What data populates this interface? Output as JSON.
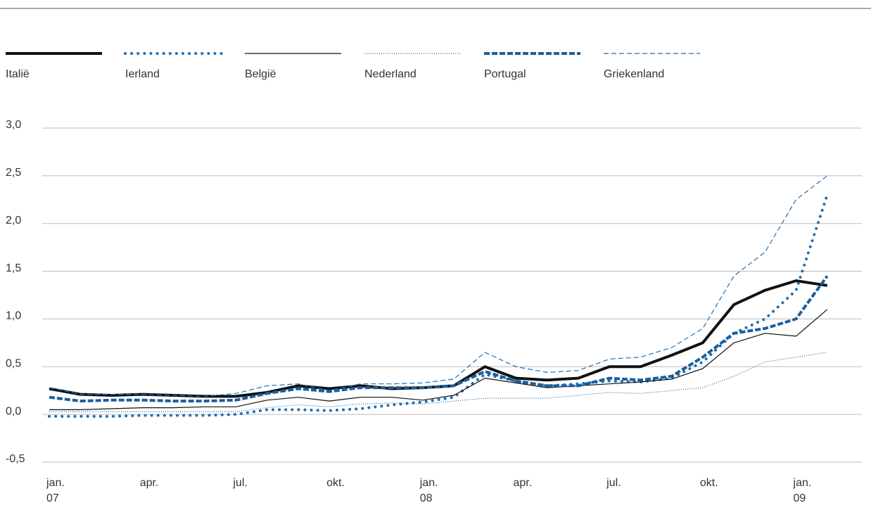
{
  "chart_data": {
    "type": "line",
    "x": [
      "2007-01",
      "2007-02",
      "2007-03",
      "2007-04",
      "2007-05",
      "2007-06",
      "2007-07",
      "2007-08",
      "2007-09",
      "2007-10",
      "2007-11",
      "2007-12",
      "2008-01",
      "2008-02",
      "2008-03",
      "2008-04",
      "2008-05",
      "2008-06",
      "2008-07",
      "2008-08",
      "2008-09",
      "2008-10",
      "2008-11",
      "2008-12",
      "2009-01",
      "2009-02"
    ],
    "xlim": [
      "2007-01",
      "2009-03"
    ],
    "xticks": [
      {
        "value": "2007-01",
        "label": "jan. 07"
      },
      {
        "value": "2007-04",
        "label": "apr."
      },
      {
        "value": "2007-07",
        "label": "jul."
      },
      {
        "value": "2007-10",
        "label": "okt."
      },
      {
        "value": "2008-01",
        "label": "jan. 08"
      },
      {
        "value": "2008-04",
        "label": "apr."
      },
      {
        "value": "2008-07",
        "label": "jul."
      },
      {
        "value": "2008-10",
        "label": "okt."
      },
      {
        "value": "2009-01",
        "label": "jan. 09"
      }
    ],
    "ylim": [
      -0.5,
      3.0
    ],
    "yticks": [
      {
        "value": -0.5,
        "label": "-0,5"
      },
      {
        "value": 0,
        "label": "0,0"
      },
      {
        "value": 0.5,
        "label": "0,5"
      },
      {
        "value": 1,
        "label": "1,0"
      },
      {
        "value": 1.5,
        "label": "1,5"
      },
      {
        "value": 2,
        "label": "2,0"
      },
      {
        "value": 2.5,
        "label": "2,5"
      },
      {
        "value": 3,
        "label": "3,0"
      }
    ],
    "grid": true,
    "legend": "top",
    "series": [
      {
        "name": "Italië",
        "color": "#111111",
        "line_style": "solid",
        "line_width": 4,
        "values": [
          0.27,
          0.21,
          0.2,
          0.21,
          0.2,
          0.19,
          0.19,
          0.23,
          0.3,
          0.27,
          0.3,
          0.27,
          0.28,
          0.3,
          0.5,
          0.38,
          0.36,
          0.38,
          0.5,
          0.5,
          0.62,
          0.75,
          1.15,
          1.3,
          1.4,
          1.35
        ]
      },
      {
        "name": "Ierland",
        "color": "#1f6fb0",
        "line_style": "dotted",
        "line_width": 4,
        "values": [
          -0.02,
          -0.02,
          -0.02,
          -0.01,
          -0.01,
          -0.01,
          0.0,
          0.05,
          0.05,
          0.04,
          0.06,
          0.1,
          0.13,
          0.18,
          0.42,
          0.35,
          0.3,
          0.32,
          0.35,
          0.34,
          0.38,
          0.55,
          0.85,
          1.0,
          1.3,
          2.3
        ]
      },
      {
        "name": "België",
        "color": "#111111",
        "line_style": "solid",
        "line_width": 1.2,
        "values": [
          0.05,
          0.05,
          0.06,
          0.07,
          0.07,
          0.08,
          0.08,
          0.15,
          0.18,
          0.14,
          0.18,
          0.18,
          0.15,
          0.2,
          0.38,
          0.33,
          0.28,
          0.3,
          0.32,
          0.34,
          0.37,
          0.48,
          0.75,
          0.85,
          0.82,
          1.1
        ]
      },
      {
        "name": "Nederland",
        "color": "#1f6fb0",
        "line_style": "dotted",
        "line_width": 1.2,
        "values": [
          0.03,
          0.03,
          0.03,
          0.03,
          0.03,
          0.03,
          0.03,
          0.07,
          0.1,
          0.08,
          0.11,
          0.12,
          0.11,
          0.14,
          0.17,
          0.17,
          0.17,
          0.2,
          0.23,
          0.22,
          0.25,
          0.28,
          0.4,
          0.55,
          0.6,
          0.65
        ]
      },
      {
        "name": "Portugal",
        "color": "#1a5f9e",
        "line_style": "dashed",
        "line_width": 4,
        "values": [
          0.18,
          0.14,
          0.15,
          0.15,
          0.14,
          0.14,
          0.15,
          0.22,
          0.27,
          0.24,
          0.28,
          0.28,
          0.28,
          0.3,
          0.45,
          0.35,
          0.3,
          0.3,
          0.38,
          0.36,
          0.4,
          0.6,
          0.85,
          0.9,
          1.0,
          1.45
        ]
      },
      {
        "name": "Griekenland",
        "color": "#1f6fb0",
        "line_style": "dashed",
        "line_width": 1.2,
        "values": [
          0.28,
          0.21,
          0.21,
          0.21,
          0.2,
          0.19,
          0.22,
          0.3,
          0.32,
          0.25,
          0.32,
          0.32,
          0.33,
          0.37,
          0.65,
          0.5,
          0.44,
          0.46,
          0.58,
          0.6,
          0.7,
          0.9,
          1.45,
          1.7,
          2.25,
          2.5
        ]
      }
    ]
  }
}
